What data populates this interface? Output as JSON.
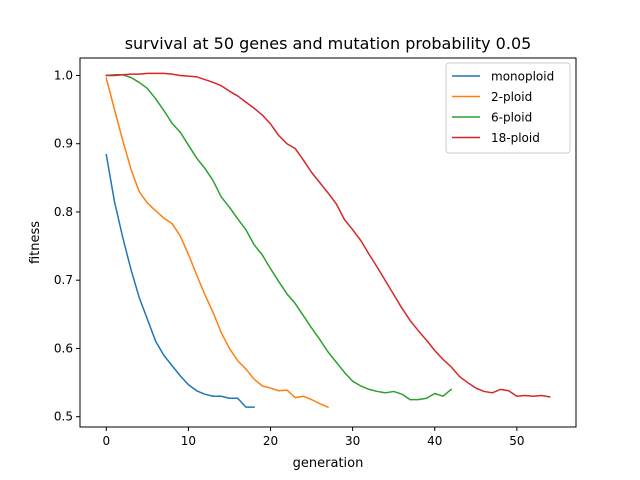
{
  "chart_data": {
    "type": "line",
    "title": "survival at 50 genes and mutation probability 0.05",
    "xlabel": "generation",
    "ylabel": "fitness",
    "xlim": [
      -3.2,
      57.2
    ],
    "ylim": [
      0.4849,
      1.0256
    ],
    "xticks": [
      0,
      10,
      20,
      30,
      40,
      50
    ],
    "yticks": [
      0.5,
      0.6,
      0.7,
      0.8,
      0.9,
      1.0
    ],
    "grid": false,
    "legend_position": "top-right",
    "series": [
      {
        "name": "monoploid",
        "color": "#1f77b4",
        "x": [
          0,
          1,
          2,
          3,
          4,
          5,
          6,
          7,
          8,
          9,
          10,
          11,
          12,
          13,
          14,
          15,
          16,
          17,
          18
        ],
        "values": [
          0.884,
          0.815,
          0.763,
          0.716,
          0.675,
          0.643,
          0.611,
          0.59,
          0.575,
          0.56,
          0.547,
          0.538,
          0.533,
          0.53,
          0.53,
          0.527,
          0.527,
          0.514,
          0.514
        ]
      },
      {
        "name": "2-ploid",
        "color": "#ff7f0e",
        "x": [
          0,
          1,
          2,
          3,
          4,
          5,
          6,
          7,
          8,
          9,
          10,
          11,
          12,
          13,
          14,
          15,
          16,
          17,
          18,
          19,
          20,
          21,
          22,
          23,
          24,
          25,
          26,
          27
        ],
        "values": [
          0.996,
          0.95,
          0.905,
          0.863,
          0.83,
          0.813,
          0.802,
          0.791,
          0.783,
          0.765,
          0.738,
          0.708,
          0.679,
          0.653,
          0.623,
          0.6,
          0.582,
          0.57,
          0.555,
          0.545,
          0.542,
          0.538,
          0.539,
          0.528,
          0.53,
          0.525,
          0.519,
          0.514
        ]
      },
      {
        "name": "6-ploid",
        "color": "#2ca02c",
        "x": [
          0,
          1,
          2,
          3,
          4,
          5,
          6,
          7,
          8,
          9,
          10,
          11,
          12,
          13,
          14,
          15,
          16,
          17,
          18,
          19,
          20,
          21,
          22,
          23,
          24,
          25,
          26,
          27,
          28,
          29,
          30,
          31,
          32,
          33,
          34,
          35,
          36,
          37,
          38,
          39,
          40,
          41,
          42
        ],
        "values": [
          1.0,
          1.001,
          1.001,
          0.997,
          0.99,
          0.981,
          0.966,
          0.949,
          0.93,
          0.917,
          0.898,
          0.879,
          0.864,
          0.846,
          0.822,
          0.807,
          0.79,
          0.774,
          0.752,
          0.737,
          0.717,
          0.698,
          0.68,
          0.666,
          0.648,
          0.63,
          0.613,
          0.595,
          0.58,
          0.565,
          0.552,
          0.545,
          0.54,
          0.537,
          0.535,
          0.537,
          0.533,
          0.525,
          0.525,
          0.527,
          0.534,
          0.53,
          0.54
        ]
      },
      {
        "name": "18-ploid",
        "color": "#d62728",
        "x": [
          0,
          1,
          2,
          3,
          4,
          5,
          6,
          7,
          8,
          9,
          10,
          11,
          12,
          13,
          14,
          15,
          16,
          17,
          18,
          19,
          20,
          21,
          22,
          23,
          24,
          25,
          26,
          27,
          28,
          29,
          30,
          31,
          32,
          33,
          34,
          35,
          36,
          37,
          38,
          39,
          40,
          41,
          42,
          43,
          44,
          45,
          46,
          47,
          48,
          49,
          50,
          51,
          52,
          53,
          54
        ],
        "values": [
          1.0,
          1.0,
          1.001,
          1.002,
          1.002,
          1.003,
          1.003,
          1.003,
          1.002,
          1.0,
          0.999,
          0.998,
          0.994,
          0.99,
          0.985,
          0.977,
          0.97,
          0.961,
          0.952,
          0.942,
          0.929,
          0.912,
          0.9,
          0.893,
          0.876,
          0.858,
          0.843,
          0.828,
          0.812,
          0.789,
          0.774,
          0.758,
          0.738,
          0.719,
          0.699,
          0.679,
          0.659,
          0.641,
          0.626,
          0.612,
          0.597,
          0.584,
          0.573,
          0.559,
          0.55,
          0.542,
          0.537,
          0.535,
          0.54,
          0.538,
          0.53,
          0.531,
          0.53,
          0.531,
          0.529
        ]
      }
    ]
  }
}
